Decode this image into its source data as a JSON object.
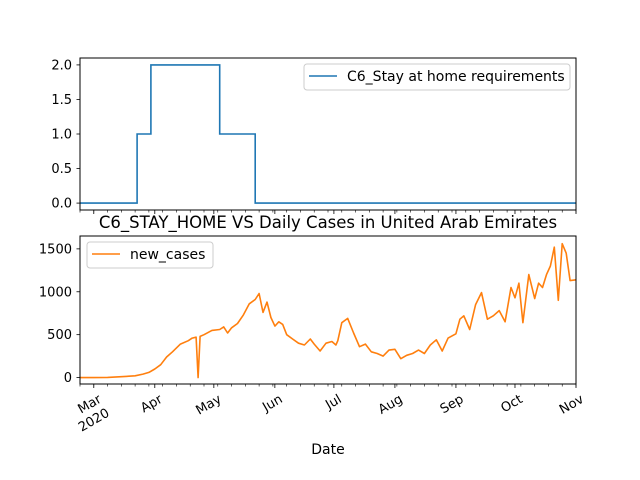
{
  "chart_data": [
    {
      "type": "line",
      "title": "",
      "xlabel": "",
      "ylabel": "",
      "xlim": [
        "2020-02-23",
        "2020-11-01"
      ],
      "ylim": [
        -0.1,
        2.1
      ],
      "yticks": [
        0.0,
        0.5,
        1.0,
        1.5,
        2.0
      ],
      "ytick_labels": [
        "0.0",
        "0.5",
        "1.0",
        "1.5",
        "2.0"
      ],
      "grid": false,
      "legend_position": "upper-right",
      "series": [
        {
          "name": "C6_Stay at home requirements",
          "color": "#1f77b4",
          "step": "post",
          "x": [
            "2020-02-23",
            "2020-03-23",
            "2020-03-30",
            "2020-04-03",
            "2020-05-04",
            "2020-05-22",
            "2020-11-01"
          ],
          "y": [
            0,
            1,
            2,
            2,
            1,
            0,
            0
          ]
        }
      ]
    },
    {
      "type": "line",
      "title": "C6_STAY_HOME VS Daily Cases in United Arab Emirates",
      "xlabel": "Date",
      "ylabel": "",
      "xlim": [
        "2020-02-23",
        "2020-11-01"
      ],
      "ylim": [
        -75,
        1650
      ],
      "yticks": [
        0,
        500,
        1000,
        1500
      ],
      "ytick_labels": [
        "0",
        "500",
        "1000",
        "1500"
      ],
      "xticks": [
        {
          "date": "2020-03-01",
          "label": "Mar",
          "sublabel": "2020"
        },
        {
          "date": "2020-04-01",
          "label": "Apr",
          "sublabel": ""
        },
        {
          "date": "2020-05-01",
          "label": "May",
          "sublabel": ""
        },
        {
          "date": "2020-06-01",
          "label": "Jun",
          "sublabel": ""
        },
        {
          "date": "2020-07-01",
          "label": "Jul",
          "sublabel": ""
        },
        {
          "date": "2020-08-01",
          "label": "Aug",
          "sublabel": ""
        },
        {
          "date": "2020-09-01",
          "label": "Sep",
          "sublabel": ""
        },
        {
          "date": "2020-10-01",
          "label": "Oct",
          "sublabel": ""
        },
        {
          "date": "2020-11-01",
          "label": "Nov",
          "sublabel": ""
        }
      ],
      "grid": false,
      "legend_position": "upper-left",
      "series": [
        {
          "name": "new_cases",
          "color": "#ff7f0e",
          "x": [
            "2020-02-23",
            "2020-03-01",
            "2020-03-08",
            "2020-03-15",
            "2020-03-22",
            "2020-03-26",
            "2020-03-29",
            "2020-04-01",
            "2020-04-04",
            "2020-04-07",
            "2020-04-10",
            "2020-04-14",
            "2020-04-18",
            "2020-04-20",
            "2020-04-22",
            "2020-04-23",
            "2020-04-24",
            "2020-04-26",
            "2020-04-30",
            "2020-05-04",
            "2020-05-06",
            "2020-05-08",
            "2020-05-10",
            "2020-05-13",
            "2020-05-16",
            "2020-05-19",
            "2020-05-22",
            "2020-05-24",
            "2020-05-26",
            "2020-05-28",
            "2020-05-30",
            "2020-06-01",
            "2020-06-03",
            "2020-06-05",
            "2020-06-07",
            "2020-06-10",
            "2020-06-13",
            "2020-06-16",
            "2020-06-19",
            "2020-06-21",
            "2020-06-24",
            "2020-06-27",
            "2020-06-30",
            "2020-07-02",
            "2020-07-03",
            "2020-07-05",
            "2020-07-08",
            "2020-07-11",
            "2020-07-14",
            "2020-07-17",
            "2020-07-20",
            "2020-07-23",
            "2020-07-26",
            "2020-07-29",
            "2020-08-01",
            "2020-08-04",
            "2020-08-07",
            "2020-08-10",
            "2020-08-13",
            "2020-08-16",
            "2020-08-19",
            "2020-08-22",
            "2020-08-25",
            "2020-08-28",
            "2020-09-01",
            "2020-09-03",
            "2020-09-05",
            "2020-09-08",
            "2020-09-11",
            "2020-09-14",
            "2020-09-17",
            "2020-09-20",
            "2020-09-23",
            "2020-09-26",
            "2020-09-29",
            "2020-10-01",
            "2020-10-03",
            "2020-10-05",
            "2020-10-08",
            "2020-10-11",
            "2020-10-13",
            "2020-10-15",
            "2020-10-17",
            "2020-10-19",
            "2020-10-21",
            "2020-10-23",
            "2020-10-25",
            "2020-10-27",
            "2020-10-29",
            "2020-11-01"
          ],
          "y": [
            0,
            0,
            2,
            10,
            20,
            40,
            60,
            100,
            150,
            240,
            300,
            390,
            430,
            460,
            470,
            0,
            480,
            500,
            550,
            560,
            590,
            520,
            580,
            630,
            730,
            860,
            910,
            980,
            760,
            880,
            700,
            600,
            650,
            620,
            500,
            450,
            400,
            380,
            450,
            390,
            310,
            400,
            420,
            380,
            430,
            640,
            690,
            520,
            360,
            390,
            300,
            280,
            250,
            320,
            330,
            220,
            260,
            280,
            320,
            280,
            380,
            440,
            310,
            460,
            510,
            680,
            720,
            560,
            850,
            990,
            680,
            720,
            780,
            650,
            1050,
            930,
            1100,
            640,
            1200,
            920,
            1100,
            1050,
            1200,
            1300,
            1520,
            900,
            1560,
            1450,
            1130,
            1140
          ]
        }
      ]
    }
  ]
}
